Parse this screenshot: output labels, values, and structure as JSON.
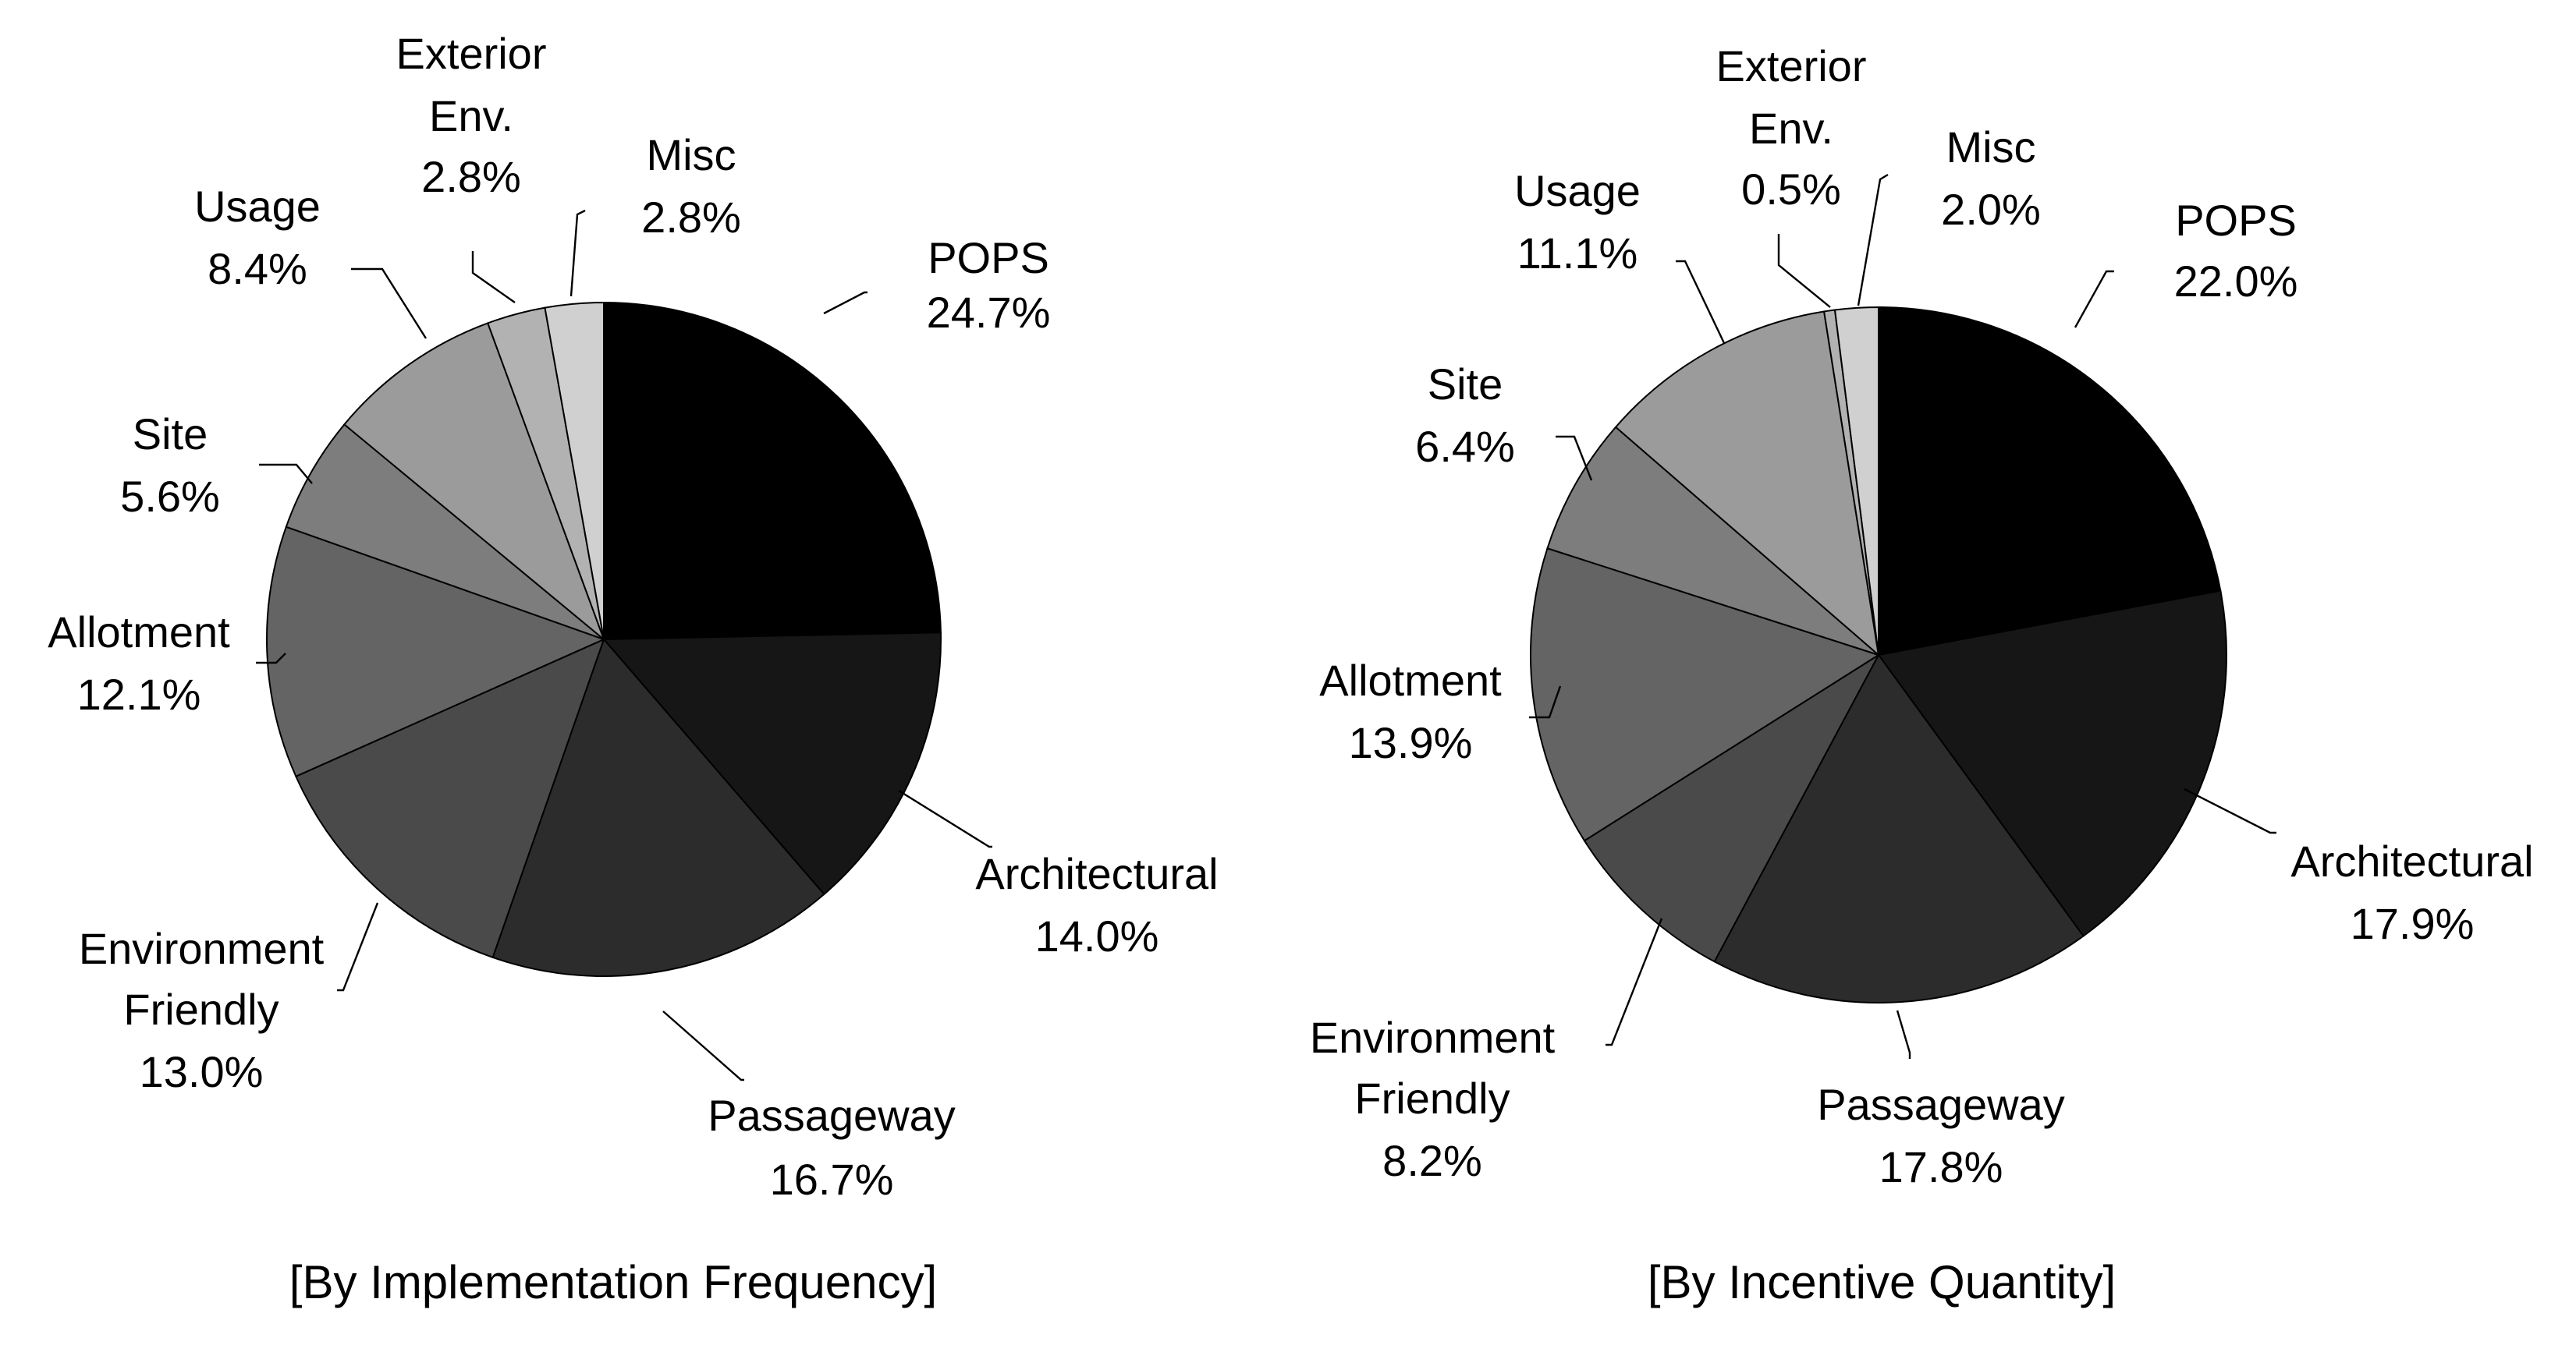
{
  "chart_data": [
    {
      "type": "pie",
      "title": "[By Implementation Frequency]",
      "slices": [
        {
          "label": "POPS",
          "value": 24.7,
          "value_label": "24.7%",
          "color": "#000000"
        },
        {
          "label": "Architectural",
          "value": 14.0,
          "value_label": "14.0%",
          "color": "#161616"
        },
        {
          "label": "Passageway",
          "value": 16.7,
          "value_label": "16.7%",
          "color": "#2c2c2c"
        },
        {
          "label": "Environment Friendly",
          "value": 13.0,
          "value_label": "13.0%",
          "color": "#4a4a4a"
        },
        {
          "label": "Allotment",
          "value": 12.1,
          "value_label": "12.1%",
          "color": "#646464"
        },
        {
          "label": "Site",
          "value": 5.6,
          "value_label": "5.6%",
          "color": "#7d7d7d"
        },
        {
          "label": "Usage",
          "value": 8.4,
          "value_label": "8.4%",
          "color": "#9b9b9b"
        },
        {
          "label": "Exterior Env.",
          "value": 2.8,
          "value_label": "2.8%",
          "color": "#b2b2b2"
        },
        {
          "label": "Misc",
          "value": 2.8,
          "value_label": "2.8%",
          "color": "#d0d0d0"
        }
      ]
    },
    {
      "type": "pie",
      "title": "[By Incentive Quantity]",
      "slices": [
        {
          "label": "POPS",
          "value": 22.0,
          "value_label": "22.0%",
          "color": "#000000"
        },
        {
          "label": "Architectural",
          "value": 17.9,
          "value_label": "17.9%",
          "color": "#161616"
        },
        {
          "label": "Passageway",
          "value": 17.8,
          "value_label": "17.8%",
          "color": "#2c2c2c"
        },
        {
          "label": "Environment Friendly",
          "value": 8.2,
          "value_label": "8.2%",
          "color": "#4a4a4a"
        },
        {
          "label": "Allotment",
          "value": 13.9,
          "value_label": "13.9%",
          "color": "#646464"
        },
        {
          "label": "Site",
          "value": 6.4,
          "value_label": "6.4%",
          "color": "#7d7d7d"
        },
        {
          "label": "Usage",
          "value": 11.1,
          "value_label": "11.1%",
          "color": "#9b9b9b"
        },
        {
          "label": "Exterior Env.",
          "value": 0.5,
          "value_label": "0.5%",
          "color": "#b2b2b2"
        },
        {
          "label": "Misc",
          "value": 2.0,
          "value_label": "2.0%",
          "color": "#d0d0d0"
        }
      ]
    }
  ]
}
